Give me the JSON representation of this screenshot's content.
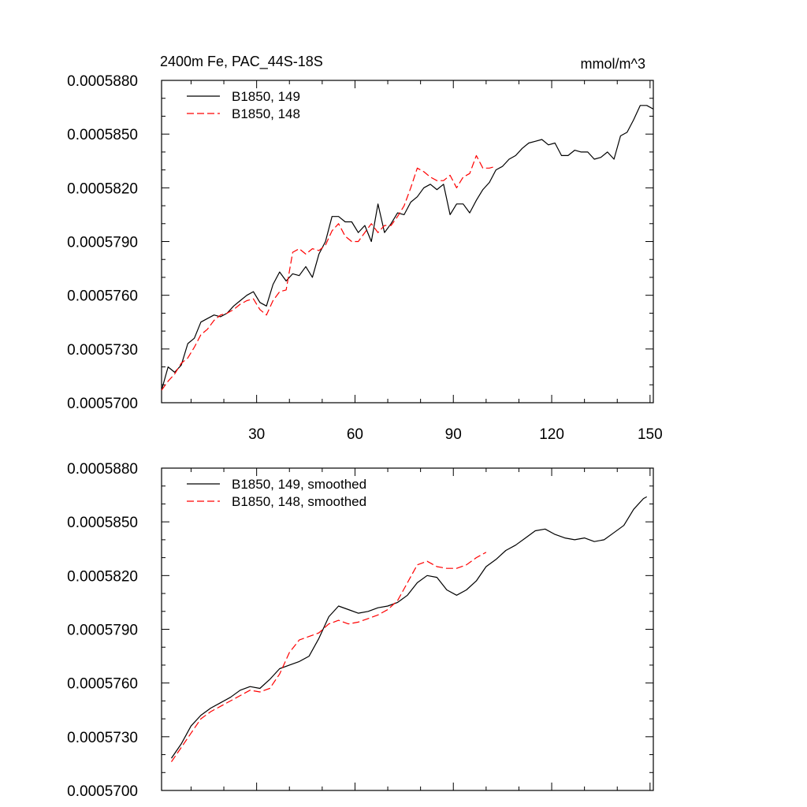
{
  "chart_data": [
    {
      "type": "line",
      "title_left": "2400m Fe, PAC_44S-18S",
      "title_right": "mmol/m^3",
      "xlabel": "",
      "ylabel": "",
      "xlim": [
        1,
        151
      ],
      "ylim": [
        0.00057,
        0.000588
      ],
      "xticks": [
        30,
        60,
        90,
        120,
        150
      ],
      "xtick_labels": [
        "30",
        "60",
        "90",
        "120",
        "150"
      ],
      "yticks": [
        0.00057,
        0.000573,
        0.000576,
        0.000579,
        0.000582,
        0.000585,
        0.000588
      ],
      "ytick_labels": [
        "0.0005700",
        "0.0005730",
        "0.0005760",
        "0.0005790",
        "0.0005820",
        "0.0005850",
        "0.0005880"
      ],
      "legend_position": "top-left",
      "series": [
        {
          "name": "B1850, 149",
          "color": "#000000",
          "dash": "solid",
          "points": [
            [
              1,
              0.0005707
            ],
            [
              3,
              0.000572
            ],
            [
              5,
              0.0005717
            ],
            [
              7,
              0.0005721
            ],
            [
              9,
              0.0005733
            ],
            [
              11,
              0.0005736
            ],
            [
              13,
              0.0005745
            ],
            [
              15,
              0.0005747
            ],
            [
              17,
              0.0005749
            ],
            [
              19,
              0.0005748
            ],
            [
              21,
              0.000575
            ],
            [
              23,
              0.0005754
            ],
            [
              25,
              0.0005757
            ],
            [
              27,
              0.000576
            ],
            [
              29,
              0.0005762
            ],
            [
              31,
              0.0005756
            ],
            [
              33,
              0.0005754
            ],
            [
              35,
              0.0005766
            ],
            [
              37,
              0.0005773
            ],
            [
              39,
              0.0005768
            ],
            [
              41,
              0.0005772
            ],
            [
              43,
              0.0005771
            ],
            [
              45,
              0.0005776
            ],
            [
              47,
              0.000577
            ],
            [
              49,
              0.0005783
            ],
            [
              51,
              0.000579
            ],
            [
              53,
              0.0005804
            ],
            [
              55,
              0.0005804
            ],
            [
              57,
              0.0005801
            ],
            [
              59,
              0.0005801
            ],
            [
              61,
              0.0005795
            ],
            [
              63,
              0.0005799
            ],
            [
              65,
              0.000579
            ],
            [
              67,
              0.0005811
            ],
            [
              69,
              0.0005795
            ],
            [
              71,
              0.00058
            ],
            [
              73,
              0.0005806
            ],
            [
              75,
              0.0005805
            ],
            [
              77,
              0.0005812
            ],
            [
              79,
              0.0005815
            ],
            [
              81,
              0.000582
            ],
            [
              83,
              0.0005822
            ],
            [
              85,
              0.0005819
            ],
            [
              87,
              0.0005822
            ],
            [
              89,
              0.0005805
            ],
            [
              91,
              0.0005811
            ],
            [
              93,
              0.0005811
            ],
            [
              95,
              0.0005806
            ],
            [
              97,
              0.0005813
            ],
            [
              99,
              0.0005819
            ],
            [
              101,
              0.0005823
            ],
            [
              103,
              0.000583
            ],
            [
              105,
              0.0005832
            ],
            [
              107,
              0.0005836
            ],
            [
              109,
              0.0005838
            ],
            [
              111,
              0.0005842
            ],
            [
              113,
              0.0005845
            ],
            [
              115,
              0.0005846
            ],
            [
              117,
              0.0005847
            ],
            [
              119,
              0.0005844
            ],
            [
              121,
              0.0005845
            ],
            [
              123,
              0.0005838
            ],
            [
              125,
              0.0005838
            ],
            [
              127,
              0.0005841
            ],
            [
              129,
              0.000584
            ],
            [
              131,
              0.000584
            ],
            [
              133,
              0.0005836
            ],
            [
              135,
              0.0005837
            ],
            [
              137,
              0.000584
            ],
            [
              139,
              0.0005836
            ],
            [
              141,
              0.0005849
            ],
            [
              143,
              0.0005851
            ],
            [
              145,
              0.0005858
            ],
            [
              147,
              0.0005866
            ],
            [
              149,
              0.0005866
            ],
            [
              151,
              0.0005864
            ]
          ]
        },
        {
          "name": "B1850, 148",
          "color": "#ff0000",
          "dash": "dashed",
          "points": [
            [
              1,
              0.0005707
            ],
            [
              3,
              0.0005712
            ],
            [
              5,
              0.0005716
            ],
            [
              7,
              0.0005722
            ],
            [
              9,
              0.0005725
            ],
            [
              11,
              0.0005731
            ],
            [
              13,
              0.0005738
            ],
            [
              15,
              0.0005741
            ],
            [
              17,
              0.0005746
            ],
            [
              19,
              0.0005749
            ],
            [
              21,
              0.000575
            ],
            [
              23,
              0.0005752
            ],
            [
              25,
              0.0005755
            ],
            [
              27,
              0.0005757
            ],
            [
              29,
              0.0005758
            ],
            [
              31,
              0.0005752
            ],
            [
              33,
              0.0005749
            ],
            [
              35,
              0.0005757
            ],
            [
              37,
              0.0005762
            ],
            [
              39,
              0.0005763
            ],
            [
              41,
              0.0005784
            ],
            [
              43,
              0.0005786
            ],
            [
              45,
              0.0005783
            ],
            [
              47,
              0.0005786
            ],
            [
              49,
              0.0005785
            ],
            [
              51,
              0.0005788
            ],
            [
              53,
              0.0005796
            ],
            [
              55,
              0.00058
            ],
            [
              57,
              0.0005793
            ],
            [
              59,
              0.000579
            ],
            [
              61,
              0.000579
            ],
            [
              63,
              0.0005795
            ],
            [
              65,
              0.00058
            ],
            [
              67,
              0.0005795
            ],
            [
              69,
              0.0005799
            ],
            [
              71,
              0.0005799
            ],
            [
              73,
              0.0005804
            ],
            [
              75,
              0.000581
            ],
            [
              77,
              0.000582
            ],
            [
              79,
              0.0005831
            ],
            [
              81,
              0.0005829
            ],
            [
              83,
              0.0005826
            ],
            [
              85,
              0.0005824
            ],
            [
              87,
              0.0005824
            ],
            [
              89,
              0.0005827
            ],
            [
              91,
              0.000582
            ],
            [
              93,
              0.0005826
            ],
            [
              95,
              0.0005828
            ],
            [
              97,
              0.0005838
            ],
            [
              99,
              0.0005831
            ],
            [
              101,
              0.0005831
            ],
            [
              103,
              0.0005832
            ]
          ]
        }
      ]
    },
    {
      "type": "line",
      "title_left": "",
      "title_right": "",
      "xlabel": "",
      "ylabel": "",
      "xlim": [
        1,
        151
      ],
      "ylim": [
        0.00057,
        0.000588
      ],
      "xticks": [
        30,
        60,
        90,
        120,
        150
      ],
      "xtick_labels": [],
      "yticks": [
        0.00057,
        0.000573,
        0.000576,
        0.000579,
        0.000582,
        0.000585,
        0.000588
      ],
      "ytick_labels": [
        "0.0005700",
        "0.0005730",
        "0.0005760",
        "0.0005790",
        "0.0005820",
        "0.0005850",
        "0.0005880"
      ],
      "legend_position": "top-left",
      "series": [
        {
          "name": "B1850, 149, smoothed",
          "color": "#000000",
          "dash": "solid",
          "points": [
            [
              4,
              0.0005718
            ],
            [
              7,
              0.0005726
            ],
            [
              10,
              0.0005736
            ],
            [
              13,
              0.0005742
            ],
            [
              16,
              0.0005746
            ],
            [
              19,
              0.0005749
            ],
            [
              22,
              0.0005752
            ],
            [
              25,
              0.0005756
            ],
            [
              28,
              0.0005758
            ],
            [
              31,
              0.0005757
            ],
            [
              34,
              0.0005762
            ],
            [
              37,
              0.0005768
            ],
            [
              40,
              0.000577
            ],
            [
              43,
              0.0005772
            ],
            [
              46,
              0.0005775
            ],
            [
              49,
              0.0005785
            ],
            [
              52,
              0.0005797
            ],
            [
              55,
              0.0005803
            ],
            [
              58,
              0.0005801
            ],
            [
              61,
              0.0005799
            ],
            [
              64,
              0.00058
            ],
            [
              67,
              0.0005802
            ],
            [
              70,
              0.0005803
            ],
            [
              73,
              0.0005805
            ],
            [
              76,
              0.0005809
            ],
            [
              79,
              0.0005816
            ],
            [
              82,
              0.000582
            ],
            [
              85,
              0.0005819
            ],
            [
              88,
              0.0005812
            ],
            [
              91,
              0.0005809
            ],
            [
              94,
              0.0005812
            ],
            [
              97,
              0.0005817
            ],
            [
              100,
              0.0005825
            ],
            [
              103,
              0.0005829
            ],
            [
              106,
              0.0005834
            ],
            [
              109,
              0.0005837
            ],
            [
              112,
              0.0005841
            ],
            [
              115,
              0.0005845
            ],
            [
              118,
              0.0005846
            ],
            [
              121,
              0.0005843
            ],
            [
              124,
              0.0005841
            ],
            [
              127,
              0.000584
            ],
            [
              130,
              0.0005841
            ],
            [
              133,
              0.0005839
            ],
            [
              136,
              0.000584
            ],
            [
              139,
              0.0005844
            ],
            [
              142,
              0.0005848
            ],
            [
              145,
              0.0005857
            ],
            [
              148,
              0.0005863
            ],
            [
              149,
              0.0005864
            ]
          ]
        },
        {
          "name": "B1850, 148, smoothed",
          "color": "#ff0000",
          "dash": "dashed",
          "points": [
            [
              4,
              0.0005716
            ],
            [
              7,
              0.0005724
            ],
            [
              10,
              0.0005732
            ],
            [
              13,
              0.000574
            ],
            [
              16,
              0.0005744
            ],
            [
              19,
              0.0005747
            ],
            [
              22,
              0.000575
            ],
            [
              25,
              0.0005753
            ],
            [
              28,
              0.0005756
            ],
            [
              31,
              0.0005755
            ],
            [
              34,
              0.0005757
            ],
            [
              37,
              0.0005765
            ],
            [
              40,
              0.0005777
            ],
            [
              43,
              0.0005784
            ],
            [
              46,
              0.0005786
            ],
            [
              49,
              0.0005788
            ],
            [
              52,
              0.0005793
            ],
            [
              55,
              0.0005795
            ],
            [
              58,
              0.0005793
            ],
            [
              61,
              0.0005794
            ],
            [
              64,
              0.0005796
            ],
            [
              67,
              0.0005798
            ],
            [
              70,
              0.0005801
            ],
            [
              73,
              0.0005806
            ],
            [
              76,
              0.0005816
            ],
            [
              79,
              0.0005826
            ],
            [
              82,
              0.0005828
            ],
            [
              85,
              0.0005825
            ],
            [
              88,
              0.0005824
            ],
            [
              91,
              0.0005824
            ],
            [
              94,
              0.0005826
            ],
            [
              97,
              0.000583
            ],
            [
              100,
              0.0005833
            ]
          ]
        }
      ]
    }
  ]
}
